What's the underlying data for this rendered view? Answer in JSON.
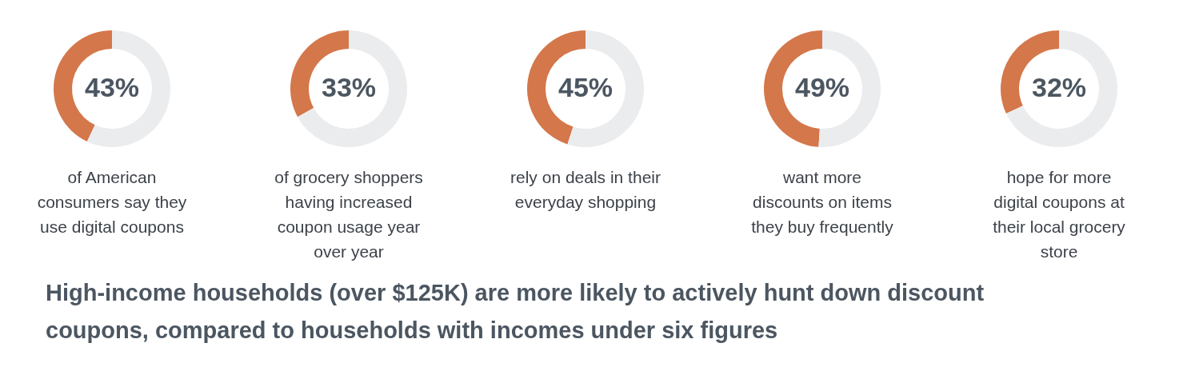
{
  "chart_data": [
    {
      "type": "donut",
      "categories": [
        null,
        null
      ],
      "values": [
        43,
        57
      ],
      "colors": [
        "#d4774a",
        "#ebecee"
      ],
      "value_labels": [
        "43%",
        null
      ],
      "title": "of American consumers say they use digital coupons"
    },
    {
      "type": "donut",
      "categories": [
        null,
        null
      ],
      "values": [
        33,
        67
      ],
      "colors": [
        "#d4774a",
        "#ebecee"
      ],
      "value_labels": [
        "33%",
        null
      ],
      "title": "of grocery shoppers having increased coupon usage year over year"
    },
    {
      "type": "donut",
      "categories": [
        null,
        null
      ],
      "values": [
        45,
        55
      ],
      "colors": [
        "#d4774a",
        "#ebecee"
      ],
      "value_labels": [
        "45%",
        null
      ],
      "title": "rely on deals in their everyday shopping"
    },
    {
      "type": "donut",
      "categories": [
        null,
        null
      ],
      "values": [
        49,
        51
      ],
      "colors": [
        "#d4774a",
        "#ebecee"
      ],
      "value_labels": [
        "49%",
        null
      ],
      "title": "want more discounts on items they buy frequently"
    },
    {
      "type": "donut",
      "categories": [
        null,
        null
      ],
      "values": [
        32,
        68
      ],
      "colors": [
        "#d4774a",
        "#ebecee"
      ],
      "value_labels": [
        "32%",
        null
      ],
      "title": "hope for more digital coupons at their local grocery store"
    },
    {
      "type": "other",
      "title": "High-income households (over $125K) are more likely to actively hunt down discount coupons, compared to households with incomes under six figures"
    }
  ]
}
